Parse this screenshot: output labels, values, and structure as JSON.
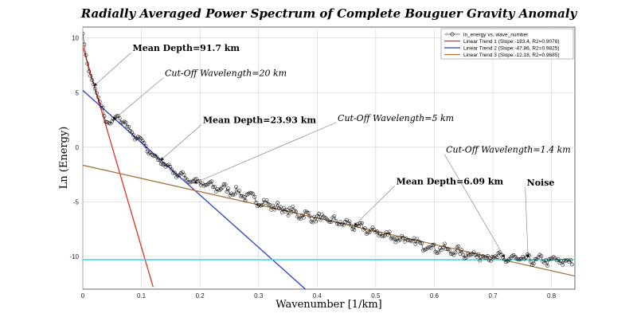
{
  "chart_data": {
    "type": "scatter",
    "title": "Radially Averaged Power Spectrum of Complete Bouguer Gravity Anomaly",
    "xlabel": "Wavenumber [1/km]",
    "ylabel": "Ln (Energy)",
    "xlim": [
      0,
      0.84
    ],
    "ylim": [
      -13,
      11
    ],
    "xticks": [
      0,
      0.1,
      0.2,
      0.3,
      0.4,
      0.5,
      0.6,
      0.7,
      0.8
    ],
    "xtick_labels": [
      "0",
      "0.1",
      "0.2",
      "0.3",
      "0.4",
      "0.5",
      "0.6",
      "0.7",
      "0.8"
    ],
    "yticks": [
      -10,
      -5,
      0,
      5,
      10
    ],
    "ytick_labels": [
      "-10",
      "-5",
      "0",
      "5",
      "10"
    ],
    "grid": true,
    "legend_position": "top-right",
    "series": [
      {
        "name": "ln_energy vs. wave_number",
        "color": "#000000",
        "marker": "open-circle",
        "anchors_x": [
          0,
          0.005,
          0.01,
          0.02,
          0.03,
          0.04,
          0.05,
          0.06,
          0.07,
          0.08,
          0.1,
          0.12,
          0.14,
          0.16,
          0.18,
          0.2,
          0.22,
          0.25,
          0.28,
          0.3,
          0.33,
          0.36,
          0.4,
          0.45,
          0.48,
          0.5,
          0.55,
          0.6,
          0.65,
          0.7,
          0.75,
          0.8,
          0.835
        ],
        "anchors_y": [
          10.4,
          8.5,
          7,
          5.5,
          4,
          2.5,
          2.1,
          2.9,
          2.3,
          1.5,
          0.5,
          -0.8,
          -1.6,
          -2.4,
          -2.9,
          -3.3,
          -3.6,
          -3.9,
          -4.5,
          -4.9,
          -5.5,
          -6,
          -6.5,
          -7,
          -7.5,
          -7.8,
          -8.5,
          -9.2,
          -9.7,
          -10.1,
          -10.3,
          -10.4,
          -10.5
        ],
        "point_count": 320
      },
      {
        "name": "Linear Trend 1 (Slope:-183.4, R2=0.9076)",
        "color": "#e0302a",
        "x": [
          0,
          0.12
        ],
        "y": [
          9.2,
          -12.8
        ]
      },
      {
        "name": "Linear Trend 2 (Slope:-47.86, R2=0.9825)",
        "color": "#2b3fbf",
        "x": [
          0,
          0.38
        ],
        "y": [
          5.2,
          -13
        ]
      },
      {
        "name": "Linear Trend 3 (Slope:-12.18, R2=0.9685)",
        "color": "#a8743a",
        "x": [
          0,
          0.84
        ],
        "y": [
          -1.65,
          -11.8
        ]
      },
      {
        "name": "",
        "color": "#38d8e0",
        "x": [
          0,
          0.84
        ],
        "y": [
          -10.3,
          -10.3
        ]
      }
    ],
    "annotations": [
      {
        "text": "Mean Depth=91.7 km",
        "style": "bold",
        "label_at": [
          0.085,
          8.8
        ],
        "arrow_to": [
          0.019,
          5.6
        ]
      },
      {
        "text": "Cut-Off Wavelength=20 km",
        "style": "italic",
        "label_at": [
          0.14,
          6.5
        ],
        "arrow_to": [
          0.052,
          2.5
        ]
      },
      {
        "text": "Mean Depth=23.93 km",
        "style": "bold",
        "label_at": [
          0.205,
          2.2
        ],
        "arrow_to": [
          0.133,
          -1.2
        ]
      },
      {
        "text": "Cut-Off Wavelength=5 km",
        "style": "italic",
        "label_at": [
          0.435,
          2.4
        ],
        "arrow_to": [
          0.19,
          -3.3
        ]
      },
      {
        "text": "Mean Depth=6.09 km",
        "style": "bold",
        "label_at": [
          0.535,
          -3.4
        ],
        "arrow_to": [
          0.463,
          -7.2
        ]
      },
      {
        "text": "Cut-Off Wavelength=1.4 km",
        "style": "italic",
        "label_at": [
          0.62,
          -0.5
        ],
        "arrow_to": [
          0.72,
          -10.1
        ]
      },
      {
        "text": "Noise",
        "style": "bold",
        "label_at": [
          0.758,
          -3.5
        ],
        "arrow_to": [
          0.76,
          -10.1
        ]
      }
    ]
  }
}
